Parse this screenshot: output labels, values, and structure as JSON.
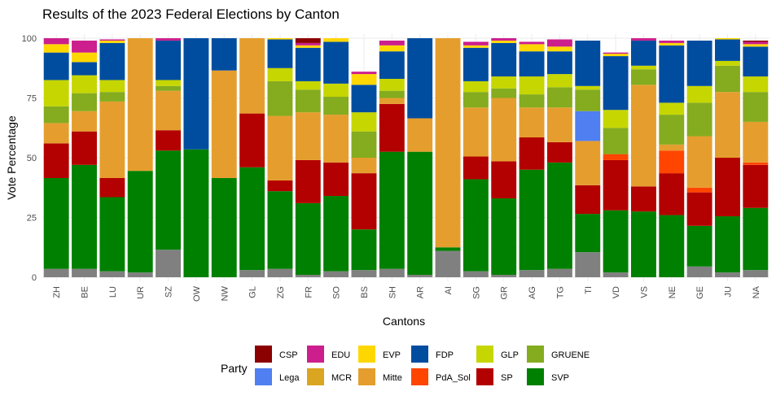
{
  "chart_data": {
    "type": "bar",
    "stacked": true,
    "title": "Results of the 2023 Federal Elections by Canton",
    "xlabel": "Cantons",
    "ylabel": "Vote Percentage",
    "ylim": [
      0,
      100
    ],
    "yticks": [
      0,
      25,
      50,
      75,
      100
    ],
    "grid": true,
    "legend_position": "bottom",
    "legend_title": "Party",
    "categories": [
      "ZH",
      "BE",
      "LU",
      "UR",
      "SZ",
      "OW",
      "NW",
      "GL",
      "ZG",
      "FR",
      "SO",
      "BS",
      "SH",
      "AR",
      "AI",
      "SG",
      "GR",
      "AG",
      "TG",
      "TI",
      "VD",
      "VS",
      "NE",
      "GE",
      "JU",
      "NA"
    ],
    "colors": {
      "other": "#808080",
      "SVP": "#008000",
      "SP": "#B30000",
      "PdA_Sol": "#FF4500",
      "MCR": "#DAA520",
      "Mitte": "#E59E2E",
      "Lega": "#4F7FF0",
      "GRUENE": "#84AC1E",
      "GLP": "#C6D600",
      "FDP": "#004D9F",
      "EVP": "#FFD700",
      "EDU": "#CC1E8C",
      "CSP": "#8B0000"
    },
    "stack_order": [
      "other",
      "SVP",
      "SP",
      "PdA_Sol",
      "MCR",
      "Mitte",
      "Lega",
      "GRUENE",
      "GLP",
      "FDP",
      "EVP",
      "EDU",
      "CSP"
    ],
    "legend": [
      "CSP",
      "EDU",
      "EVP",
      "FDP",
      "GLP",
      "GRUENE",
      "Lega",
      "MCR",
      "Mitte",
      "PdA_Sol",
      "SP",
      "SVP"
    ],
    "series": [
      {
        "name": "other",
        "values": [
          3.5,
          3.5,
          2.5,
          2,
          11.5,
          0,
          0,
          3,
          3.5,
          1,
          2.5,
          3,
          3.5,
          1,
          11,
          2.5,
          1,
          3,
          3.5,
          10.5,
          2,
          0,
          0,
          4.5,
          2,
          3
        ]
      },
      {
        "name": "SVP",
        "values": [
          38,
          43.5,
          31,
          42.5,
          41.5,
          53.5,
          41.5,
          43,
          32.5,
          30,
          31.5,
          17,
          49,
          51.5,
          1.5,
          38.5,
          32,
          42,
          44.5,
          16,
          26,
          27.5,
          26,
          17,
          23.5,
          26
        ]
      },
      {
        "name": "SP",
        "values": [
          14.5,
          14,
          8,
          0,
          8.5,
          0,
          0,
          22.5,
          4.5,
          18,
          14,
          23.5,
          20,
          0,
          0,
          9.5,
          15.5,
          13.5,
          8.5,
          12,
          21,
          10.5,
          17.5,
          14,
          24.5,
          18
        ]
      },
      {
        "name": "PdA_Sol",
        "values": [
          0,
          0,
          0,
          0,
          0,
          0,
          0,
          0,
          0,
          0,
          0,
          0,
          0,
          0,
          0,
          0,
          0,
          0,
          0,
          0,
          2.5,
          0,
          9.5,
          2,
          0,
          1
        ]
      },
      {
        "name": "MCR",
        "values": [
          0,
          0,
          0,
          0,
          0,
          0,
          0,
          0,
          0,
          0,
          0,
          0,
          0,
          0,
          0,
          0,
          0,
          0,
          0,
          0,
          0,
          0,
          0,
          0,
          0,
          0
        ]
      },
      {
        "name": "Mitte",
        "values": [
          8.5,
          8.5,
          32,
          55.5,
          16.5,
          0,
          45,
          31.5,
          27,
          20,
          20,
          6.5,
          2.5,
          14,
          87.5,
          20.5,
          26.5,
          12.5,
          14.5,
          18.5,
          0,
          42.5,
          2.5,
          21.5,
          27.5,
          17
        ]
      },
      {
        "name": "Lega",
        "values": [
          0,
          0,
          0,
          0,
          0,
          0,
          0,
          0,
          0,
          0,
          0,
          0,
          0,
          0,
          0,
          0,
          0,
          0,
          0,
          12.5,
          0,
          0,
          0,
          0,
          0,
          0
        ]
      },
      {
        "name": "GRUENE",
        "values": [
          7,
          7.5,
          4,
          0,
          2,
          0,
          0,
          0,
          14.5,
          9.5,
          7.5,
          11,
          3,
          0,
          0,
          6.5,
          4,
          5.5,
          8.5,
          9,
          11,
          6.5,
          12.5,
          14,
          11,
          12.5
        ]
      },
      {
        "name": "GLP",
        "values": [
          11,
          7.5,
          5,
          0,
          2.5,
          0,
          0,
          0,
          5.5,
          3.5,
          5.5,
          8,
          5,
          0,
          0,
          4.5,
          5,
          7.5,
          5.5,
          1.5,
          7.5,
          1.5,
          5,
          7,
          2,
          6.5
        ]
      },
      {
        "name": "FDP",
        "values": [
          11.5,
          5.5,
          15.5,
          0,
          16.5,
          46.5,
          13.5,
          0,
          12,
          14,
          17.5,
          11.5,
          11.5,
          33.5,
          0,
          14,
          14,
          10.5,
          9.5,
          19,
          22.5,
          10.5,
          24,
          19,
          9,
          12.5
        ]
      },
      {
        "name": "EVP",
        "values": [
          3.5,
          4,
          1,
          0,
          0,
          0,
          0,
          0,
          0.5,
          1,
          1.5,
          4.5,
          2.5,
          0,
          0,
          1,
          1,
          3,
          2,
          0,
          1,
          0,
          1,
          0,
          0.5,
          1
        ]
      },
      {
        "name": "EDU",
        "values": [
          2.5,
          5,
          0.5,
          0,
          1,
          0,
          0,
          0,
          0,
          1,
          0,
          1,
          2,
          0,
          0,
          1.5,
          1,
          1,
          3,
          0,
          0.5,
          1,
          1,
          0,
          0,
          1
        ]
      },
      {
        "name": "CSP",
        "values": [
          0,
          0,
          0,
          0,
          0,
          0,
          0,
          0,
          0,
          2,
          0,
          0,
          0,
          0,
          0,
          0,
          0,
          0,
          0,
          0,
          0,
          0,
          0,
          0,
          0,
          0.5
        ]
      }
    ]
  }
}
